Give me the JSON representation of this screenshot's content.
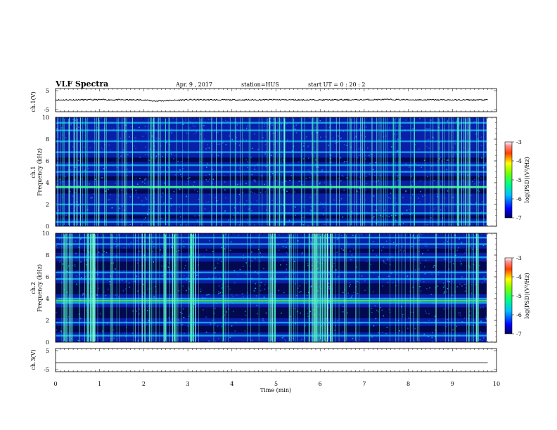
{
  "header": {
    "title": "VLF Spectra",
    "date": "Apr. 9 , 2017",
    "station": "station=HUS",
    "start": "start UT = 0 : 20 : 2"
  },
  "chart_data": [
    {
      "type": "line",
      "panel": "ch1-voltage",
      "ylabel": "ch.1(V)",
      "ylim": [
        -5,
        5
      ],
      "yticks": [
        "5",
        "-5"
      ],
      "x": [
        0,
        1,
        2,
        2.25,
        3,
        4,
        5,
        6,
        7,
        7.5,
        8,
        9,
        9.8
      ],
      "values": [
        0.1,
        0.2,
        0.1,
        -0.5,
        0.2,
        0.1,
        0.2,
        0.1,
        0.2,
        0.3,
        0.2,
        0.1,
        0.1
      ]
    },
    {
      "type": "heatmap",
      "panel": "ch1-spectrogram",
      "ylabel": "ch.1 Frequency (kHz)",
      "ylim": [
        0,
        10
      ],
      "yticks": [
        "0",
        "2",
        "4",
        "6",
        "8",
        "10"
      ],
      "colorbar": {
        "label": "log(PSD)(V²/Hz)",
        "range": [
          -7,
          -3
        ],
        "ticks": [
          "-3",
          "-4",
          "-5",
          "-6",
          "-7"
        ]
      },
      "bright_bands_khz": [
        0.4,
        1.2,
        2.0,
        3.6,
        5.0,
        5.6,
        6.8,
        7.8,
        8.8,
        9.5
      ]
    },
    {
      "type": "heatmap",
      "panel": "ch2-spectrogram",
      "ylabel": "ch.2 Frequency (kHz)",
      "ylim": [
        0,
        10
      ],
      "yticks": [
        "0",
        "2",
        "4",
        "6",
        "8",
        "10"
      ],
      "colorbar": {
        "label": "log(PSD)(V²/Hz)",
        "range": [
          -7,
          -3
        ],
        "ticks": [
          "-3",
          "-4",
          "-5",
          "-6",
          "-7"
        ]
      },
      "bright_bands_khz": [
        0.6,
        1.8,
        3.6,
        4.0,
        5.8,
        6.4,
        7.8,
        9.0,
        9.6
      ]
    },
    {
      "type": "line",
      "panel": "ch3-voltage",
      "ylabel": "ch.3(V)",
      "ylim": [
        -5,
        5
      ],
      "yticks": [
        "5",
        "-5"
      ],
      "x": [
        0,
        9.8
      ],
      "values": [
        -1.5,
        -1.5
      ]
    }
  ],
  "xaxis": {
    "label": "Time (min)",
    "range": [
      0,
      10
    ],
    "ticks": [
      "0",
      "1",
      "2",
      "3",
      "4",
      "5",
      "6",
      "7",
      "8",
      "9",
      "10"
    ]
  }
}
